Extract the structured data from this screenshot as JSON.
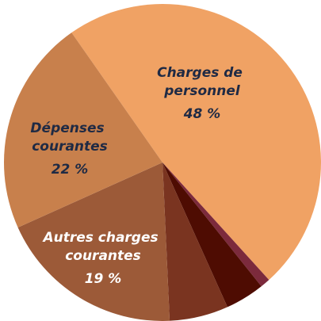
{
  "chart_data": {
    "type": "pie",
    "categories": [
      "Charges de personnel",
      null,
      null,
      null,
      "Autres charges courantes",
      "Dépenses courantes"
    ],
    "values": [
      48,
      1,
      4,
      6,
      19,
      22
    ],
    "value_labels": [
      "48 %",
      null,
      null,
      null,
      "19 %",
      "22 %"
    ],
    "colors": [
      "#f0a264",
      "#7c2a3c",
      "#4e0c02",
      "#7a3420",
      "#9c5a38",
      "#c8804c"
    ]
  }
}
